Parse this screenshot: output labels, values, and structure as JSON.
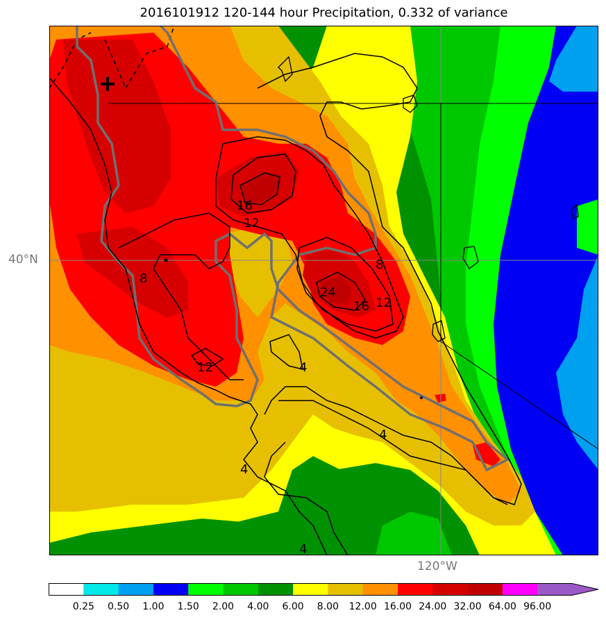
{
  "title": "2016101912 120-144 hour Precipitation, 0.332 of variance",
  "map": {
    "lat_label": "40°N",
    "lon_label": "120°W",
    "contour_labels": [
      "16",
      "12",
      "8",
      "24",
      "16",
      "12",
      "8",
      "12",
      "4",
      "4",
      "4",
      "4"
    ],
    "features": [
      "precipitation-fill",
      "coastline",
      "state-borders",
      "terrain-outline",
      "contour-lines",
      "gridlines",
      "station-marker"
    ]
  },
  "colorbar": {
    "levels": [
      "0.25",
      "0.50",
      "1.00",
      "1.50",
      "2.00",
      "4.00",
      "6.00",
      "8.00",
      "12.00",
      "16.00",
      "24.00",
      "32.00",
      "64.00",
      "96.00"
    ],
    "colors": [
      "#ffffff",
      "#00e8e8",
      "#00a0f0",
      "#0000f5",
      "#00ff00",
      "#00c800",
      "#009100",
      "#ffff00",
      "#e6c000",
      "#ff9000",
      "#ff0000",
      "#d60000",
      "#c00000",
      "#ff00ff",
      "#9b59c8"
    ]
  }
}
